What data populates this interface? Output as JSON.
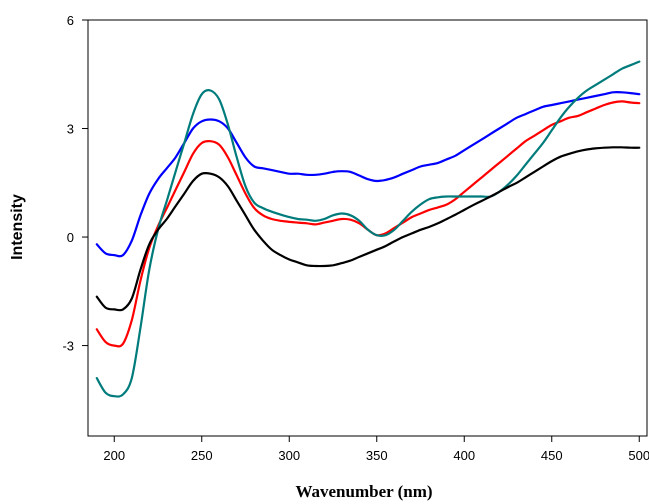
{
  "chart_data": {
    "type": "line",
    "title": "",
    "xlabel": "Wavenumber (nm)",
    "ylabel": "Intensity",
    "xlim": [
      185,
      505
    ],
    "ylim": [
      -5.5,
      6
    ],
    "x_ticks": [
      200,
      250,
      300,
      350,
      400,
      450,
      500
    ],
    "x_tick_labels": [
      "200",
      "250",
      "300",
      "350",
      "400",
      "450",
      "500"
    ],
    "y_ticks": [
      -3,
      0,
      3,
      6
    ],
    "y_tick_labels": [
      "-3",
      "0",
      "3",
      "6"
    ],
    "grid": false,
    "legend": "none",
    "x": [
      190,
      195,
      200,
      205,
      210,
      215,
      220,
      225,
      230,
      235,
      240,
      245,
      250,
      255,
      260,
      265,
      270,
      275,
      280,
      285,
      290,
      295,
      300,
      305,
      310,
      315,
      320,
      325,
      330,
      335,
      340,
      345,
      350,
      355,
      360,
      365,
      370,
      375,
      380,
      385,
      390,
      395,
      400,
      405,
      410,
      415,
      420,
      425,
      430,
      435,
      440,
      445,
      450,
      455,
      460,
      465,
      470,
      475,
      480,
      485,
      490,
      495,
      500
    ],
    "series": [
      {
        "color": "#0000ff",
        "values": [
          -0.2,
          -0.45,
          -0.5,
          -0.5,
          -0.1,
          0.6,
          1.2,
          1.6,
          1.9,
          2.2,
          2.6,
          3.0,
          3.2,
          3.25,
          3.2,
          3.0,
          2.6,
          2.2,
          1.95,
          1.9,
          1.85,
          1.8,
          1.75,
          1.75,
          1.72,
          1.72,
          1.75,
          1.8,
          1.82,
          1.8,
          1.7,
          1.6,
          1.55,
          1.58,
          1.65,
          1.75,
          1.85,
          1.95,
          2.0,
          2.05,
          2.15,
          2.25,
          2.4,
          2.55,
          2.7,
          2.85,
          3.0,
          3.15,
          3.3,
          3.4,
          3.5,
          3.6,
          3.65,
          3.7,
          3.75,
          3.8,
          3.85,
          3.9,
          3.95,
          4.0,
          4.0,
          3.98,
          3.95
        ]
      },
      {
        "color": "#ff0000",
        "values": [
          -2.55,
          -2.9,
          -3.0,
          -2.95,
          -2.3,
          -1.2,
          -0.3,
          0.3,
          0.8,
          1.3,
          1.8,
          2.3,
          2.6,
          2.65,
          2.55,
          2.2,
          1.7,
          1.2,
          0.8,
          0.6,
          0.5,
          0.45,
          0.42,
          0.4,
          0.38,
          0.35,
          0.4,
          0.45,
          0.5,
          0.48,
          0.38,
          0.2,
          0.05,
          0.1,
          0.25,
          0.4,
          0.55,
          0.65,
          0.75,
          0.82,
          0.9,
          1.05,
          1.25,
          1.45,
          1.65,
          1.85,
          2.05,
          2.25,
          2.45,
          2.65,
          2.8,
          2.95,
          3.1,
          3.2,
          3.3,
          3.35,
          3.45,
          3.55,
          3.65,
          3.72,
          3.75,
          3.72,
          3.7
        ]
      },
      {
        "color": "#007b7b",
        "values": [
          -3.9,
          -4.3,
          -4.4,
          -4.35,
          -3.9,
          -2.5,
          -0.9,
          0.2,
          1.0,
          1.8,
          2.6,
          3.4,
          3.95,
          4.05,
          3.8,
          3.1,
          2.2,
          1.4,
          0.95,
          0.8,
          0.7,
          0.62,
          0.55,
          0.5,
          0.48,
          0.45,
          0.5,
          0.6,
          0.65,
          0.6,
          0.45,
          0.2,
          0.05,
          0.05,
          0.2,
          0.45,
          0.7,
          0.9,
          1.05,
          1.1,
          1.12,
          1.12,
          1.12,
          1.12,
          1.12,
          1.12,
          1.25,
          1.45,
          1.7,
          2.0,
          2.3,
          2.6,
          2.95,
          3.3,
          3.6,
          3.85,
          4.05,
          4.2,
          4.35,
          4.5,
          4.65,
          4.75,
          4.85
        ]
      },
      {
        "color": "#000000",
        "values": [
          -1.65,
          -1.95,
          -2.0,
          -2.0,
          -1.7,
          -0.9,
          -0.2,
          0.2,
          0.5,
          0.85,
          1.2,
          1.55,
          1.75,
          1.75,
          1.65,
          1.4,
          1.0,
          0.6,
          0.2,
          -0.1,
          -0.35,
          -0.5,
          -0.62,
          -0.7,
          -0.78,
          -0.8,
          -0.8,
          -0.78,
          -0.72,
          -0.65,
          -0.55,
          -0.45,
          -0.35,
          -0.25,
          -0.12,
          0.0,
          0.1,
          0.2,
          0.28,
          0.38,
          0.5,
          0.62,
          0.75,
          0.88,
          1.0,
          1.12,
          1.25,
          1.38,
          1.5,
          1.65,
          1.8,
          1.95,
          2.1,
          2.22,
          2.3,
          2.37,
          2.42,
          2.45,
          2.47,
          2.48,
          2.48,
          2.47,
          2.47
        ]
      }
    ]
  }
}
